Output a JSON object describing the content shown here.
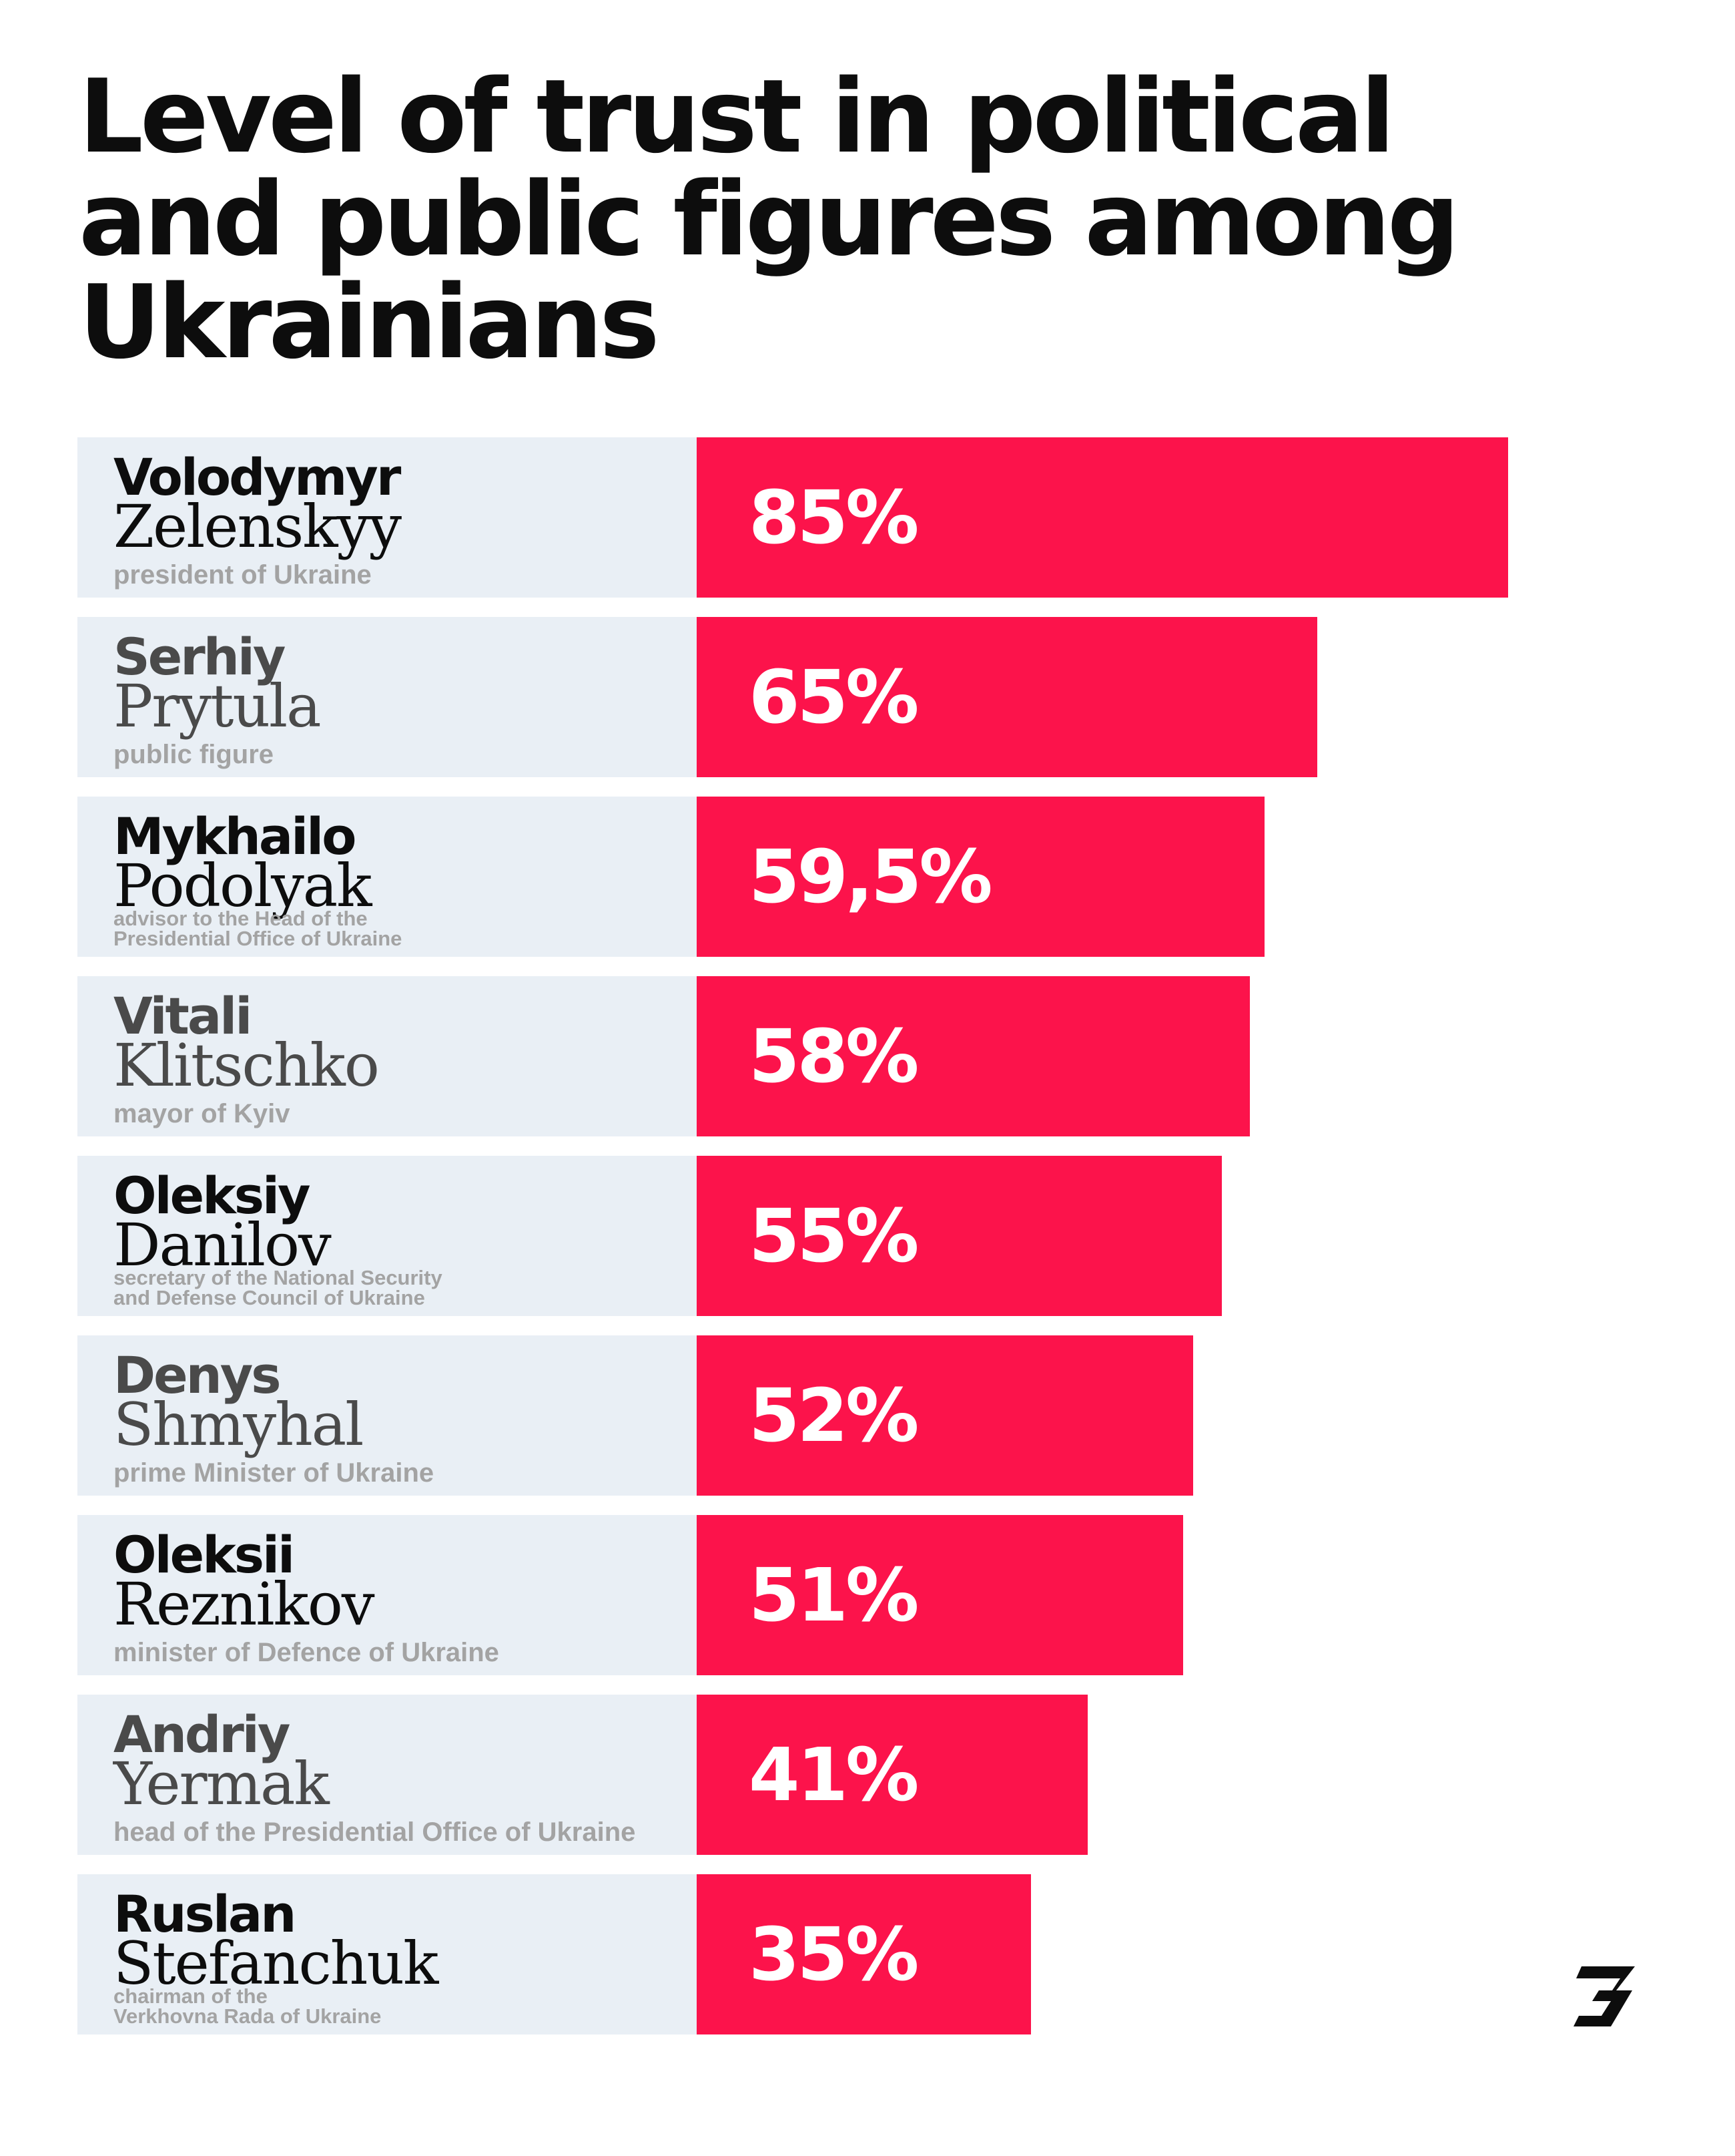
{
  "title_lines": [
    "Level of trust in political",
    "and public figures among",
    "Ukrainians"
  ],
  "colors": {
    "bar": "#fc134b",
    "label_bg": "#e9eff5",
    "name_dark": "#0d0d0d",
    "name_gray": "#4a4a4a",
    "role": "#a3a3a3",
    "value_text": "#ffffff"
  },
  "logo": {
    "icon": "brand-logo-icon"
  },
  "chart_data": {
    "type": "bar",
    "orientation": "horizontal",
    "title": "Level of trust in political and public figures among Ukrainians",
    "unit": "%",
    "xlim": [
      0,
      100
    ],
    "grid": false,
    "categories": [
      "Volodymyr Zelenskyy",
      "Serhiy Prytula",
      "Mykhailo Podolyak",
      "Vitali Klitschko",
      "Oleksiy Danilov",
      "Denys Shmyhal",
      "Oleksii Reznikov",
      "Andriy Yermak",
      "Ruslan Stefanchuk"
    ],
    "values": [
      85,
      65,
      59.5,
      58,
      55,
      52,
      51,
      41,
      35
    ],
    "rows": [
      {
        "first": "Volodymyr",
        "last": "Zelenskyy",
        "role": [
          "president of Ukraine"
        ],
        "value": 85,
        "value_label": "85%",
        "name_tone": "dark"
      },
      {
        "first": "Serhiy",
        "last": "Prytula",
        "role": [
          "public figure"
        ],
        "value": 65,
        "value_label": "65%",
        "name_tone": "gray"
      },
      {
        "first": "Mykhailo",
        "last": "Podolyak",
        "role": [
          "advisor to the Head of the",
          "Presidential Office of Ukraine"
        ],
        "value": 59.5,
        "value_label": "59,5%",
        "name_tone": "dark"
      },
      {
        "first": "Vitali",
        "last": "Klitschko",
        "role": [
          "mayor of Kyiv"
        ],
        "value": 58,
        "value_label": "58%",
        "name_tone": "gray"
      },
      {
        "first": "Oleksiy",
        "last": "Danilov",
        "role": [
          "secretary of the National Security",
          "and Defense Council of Ukraine"
        ],
        "value": 55,
        "value_label": "55%",
        "name_tone": "dark"
      },
      {
        "first": "Denys",
        "last": "Shmyhal",
        "role": [
          "prime Minister of Ukraine"
        ],
        "value": 52,
        "value_label": "52%",
        "name_tone": "gray"
      },
      {
        "first": "Oleksii",
        "last": "Reznikov",
        "role": [
          "minister of Defence of Ukraine"
        ],
        "value": 51,
        "value_label": "51%",
        "name_tone": "dark"
      },
      {
        "first": "Andriy",
        "last": "Yermak",
        "role": [
          "head of the Presidential Office of Ukraine"
        ],
        "value": 41,
        "value_label": "41%",
        "name_tone": "gray"
      },
      {
        "first": "Ruslan",
        "last": "Stefanchuk",
        "role": [
          "chairman of the",
          "Verkhovna Rada of Ukraine"
        ],
        "value": 35,
        "value_label": "35%",
        "name_tone": "dark"
      }
    ]
  }
}
